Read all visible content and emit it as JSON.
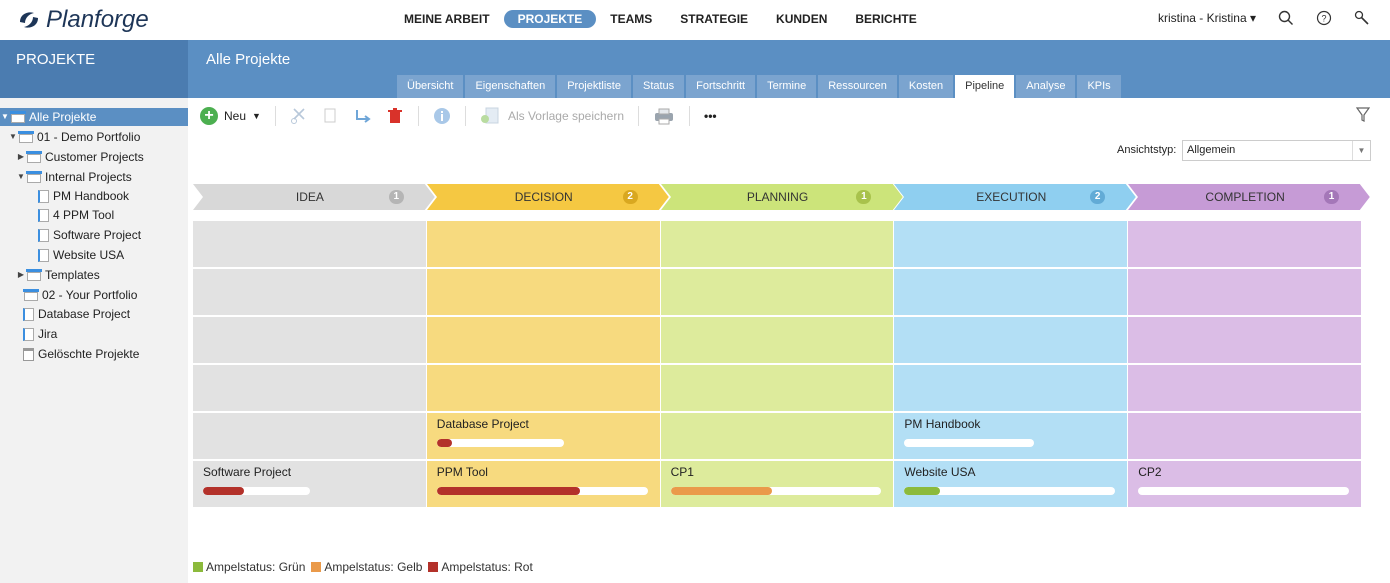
{
  "app": {
    "name": "Planforge"
  },
  "nav": {
    "items": [
      "MEINE ARBEIT",
      "PROJEKTE",
      "TEAMS",
      "STRATEGIE",
      "KUNDEN",
      "BERICHTE"
    ],
    "active": "PROJEKTE"
  },
  "user": {
    "label": "kristina - Kristina ▾"
  },
  "left_header": {
    "title": "PROJEKTE"
  },
  "page": {
    "title": "Alle Projekte"
  },
  "tabs": [
    "Übersicht",
    "Eigenschaften",
    "Projektliste",
    "Status",
    "Fortschritt",
    "Termine",
    "Ressourcen",
    "Kosten",
    "Pipeline",
    "Analyse",
    "KPIs"
  ],
  "active_tab": "Pipeline",
  "tree": [
    {
      "label": "Alle Projekte",
      "selected": true
    },
    {
      "label": "01 - Demo Portfolio"
    },
    {
      "label": "Customer Projects"
    },
    {
      "label": "Internal Projects"
    },
    {
      "label": "PM Handbook"
    },
    {
      "label": "4 PPM Tool"
    },
    {
      "label": "Software Project"
    },
    {
      "label": "Website USA"
    },
    {
      "label": "Templates"
    },
    {
      "label": "02 - Your Portfolio"
    },
    {
      "label": "Database Project"
    },
    {
      "label": "Jira"
    },
    {
      "label": "Gelöschte Projekte"
    }
  ],
  "toolbar": {
    "new_label": "Neu",
    "template_label": "Als Vorlage speichern",
    "more_label": "•••"
  },
  "view": {
    "label": "Ansichtstyp:",
    "value": "Allgemein"
  },
  "stages": [
    {
      "name": "IDEA",
      "count": "1",
      "color": "#d8d8d8",
      "grid": "#e2e2e2",
      "badge": "#b5b5b5"
    },
    {
      "name": "DECISION",
      "count": "2",
      "color": "#f5c842",
      "grid": "#f7da7f",
      "badge": "#d9a820"
    },
    {
      "name": "PLANNING",
      "count": "1",
      "color": "#cce47a",
      "grid": "#ddeb9c",
      "badge": "#a8c24c"
    },
    {
      "name": "EXECUTION",
      "count": "2",
      "color": "#8fcff0",
      "grid": "#b3dff5",
      "badge": "#62abd6"
    },
    {
      "name": "COMPLETION",
      "count": "1",
      "color": "#c69bd6",
      "grid": "#dbbde6",
      "badge": "#a477b8"
    }
  ],
  "cards": [
    {
      "stage": 1,
      "row": 4,
      "title": "Database Project",
      "progress": 0.12,
      "status": "red"
    },
    {
      "stage": 3,
      "row": 4,
      "title": "PM Handbook",
      "progress": 0.0,
      "status": "none"
    },
    {
      "stage": 0,
      "row": 5,
      "title": "Software Project",
      "progress": 0.38,
      "status": "red"
    },
    {
      "stage": 1,
      "row": 5,
      "title": "PPM Tool",
      "progress": 0.68,
      "status": "red"
    },
    {
      "stage": 2,
      "row": 5,
      "title": "CP1",
      "progress": 0.48,
      "status": "orange"
    },
    {
      "stage": 3,
      "row": 5,
      "title": "Website USA",
      "progress": 0.17,
      "status": "green"
    },
    {
      "stage": 4,
      "row": 5,
      "title": "CP2",
      "progress": 0.0,
      "status": "none"
    }
  ],
  "status_colors": {
    "red": "#b3312a",
    "orange": "#ea9a4a",
    "green": "#8cba3c"
  },
  "legend": [
    {
      "label": "Ampelstatus: Grün",
      "color": "#8cba3c"
    },
    {
      "label": "Ampelstatus: Gelb",
      "color": "#ea9a4a"
    },
    {
      "label": "Ampelstatus: Rot",
      "color": "#b3312a"
    }
  ]
}
